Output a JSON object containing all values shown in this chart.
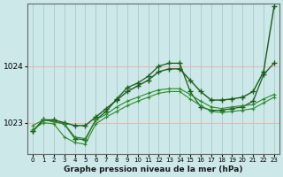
{
  "background_color": "#cce8e8",
  "grid_color": "#f0b0b0",
  "grid_color_v": "#aad0d0",
  "line_color_dark": "#1a5c1a",
  "line_color_light": "#2d8b2d",
  "xlabel": "Graphe pression niveau de la mer (hPa)",
  "ylabel_ticks": [
    1023,
    1024
  ],
  "xlim": [
    -0.5,
    23.5
  ],
  "ylim": [
    1022.45,
    1025.1
  ],
  "hours": [
    0,
    1,
    2,
    3,
    4,
    5,
    6,
    7,
    8,
    9,
    10,
    11,
    12,
    13,
    14,
    15,
    16,
    17,
    18,
    19,
    20,
    21,
    22,
    23
  ],
  "series_top": [
    1022.85,
    1023.05,
    1023.05,
    1023.0,
    1022.95,
    1022.95,
    1023.1,
    1023.25,
    1023.4,
    1023.55,
    1023.65,
    1023.75,
    1023.9,
    1023.95,
    1023.95,
    1023.75,
    1023.55,
    1023.4,
    1023.4,
    1023.42,
    1023.45,
    1023.55,
    1023.9,
    1025.05
  ],
  "series_peak": [
    1022.85,
    1023.05,
    1023.02,
    1022.98,
    1022.72,
    1022.7,
    1023.05,
    1023.2,
    1023.42,
    1023.62,
    1023.7,
    1023.82,
    1024.0,
    1024.05,
    1024.05,
    1023.55,
    1023.28,
    1023.22,
    1023.22,
    1023.25,
    1023.28,
    1023.38,
    1023.85,
    1024.05
  ],
  "series_flat1": [
    1022.95,
    1023.05,
    1023.02,
    1022.98,
    1022.75,
    1022.72,
    1023.05,
    1023.15,
    1023.28,
    1023.38,
    1023.45,
    1023.52,
    1023.58,
    1023.6,
    1023.6,
    1023.5,
    1023.38,
    1023.28,
    1023.25,
    1023.28,
    1023.3,
    1023.32,
    1023.42,
    1023.5
  ],
  "series_dip": [
    1022.88,
    1023.0,
    1022.98,
    1022.75,
    1022.65,
    1022.62,
    1022.98,
    1023.1,
    1023.2,
    1023.3,
    1023.38,
    1023.45,
    1023.52,
    1023.55,
    1023.55,
    1023.42,
    1023.3,
    1023.2,
    1023.18,
    1023.2,
    1023.22,
    1023.25,
    1023.35,
    1023.45
  ]
}
